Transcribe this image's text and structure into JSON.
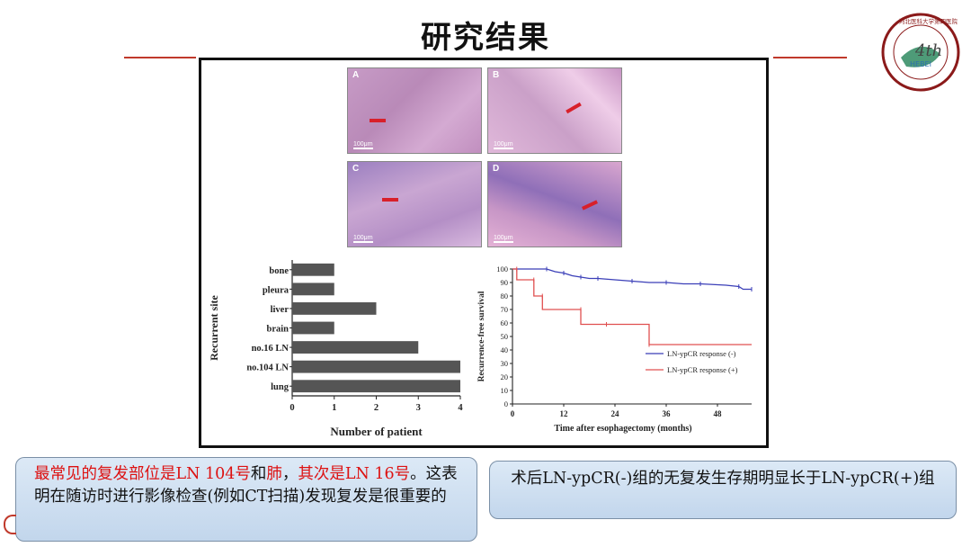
{
  "slide": {
    "title": "研究结果"
  },
  "logo": {
    "ring_text": "河北医科大学第四医院",
    "center_text": "4th",
    "sub_text": "HEBEI"
  },
  "micrographs": [
    {
      "label": "A",
      "scale": "100μm"
    },
    {
      "label": "B",
      "scale": "100μm"
    },
    {
      "label": "C",
      "scale": "100μm"
    },
    {
      "label": "D",
      "scale": "100μm"
    }
  ],
  "chart_data": [
    {
      "type": "bar",
      "orientation": "horizontal",
      "categories": [
        "bone",
        "pleura",
        "liver",
        "brain",
        "no.16 LN",
        "no.104 LN",
        "lung"
      ],
      "values": [
        1,
        1,
        2,
        1,
        3,
        4,
        4
      ],
      "xlabel": "Number of patient",
      "ylabel": "Recurrent site",
      "xlim": [
        0,
        4
      ],
      "xticks": [
        "0",
        "1",
        "2",
        "3",
        "4"
      ],
      "bar_color": "#555555"
    },
    {
      "type": "line",
      "step": true,
      "xlabel": "Time after esophagectomy (months)",
      "ylabel": "Recurrence-free survival",
      "xlim": [
        0,
        56
      ],
      "ylim": [
        0,
        100
      ],
      "xticks": [
        "0",
        "12",
        "24",
        "36",
        "48"
      ],
      "yticks": [
        "0",
        "10",
        "20",
        "30",
        "40",
        "50",
        "60",
        "70",
        "80",
        "90",
        "100"
      ],
      "series": [
        {
          "name": "LN-ypCR response (-)",
          "color": "#3b3fb8",
          "points": [
            [
              0,
              100
            ],
            [
              8,
              100
            ],
            [
              10,
              98
            ],
            [
              12,
              97
            ],
            [
              14,
              95
            ],
            [
              16,
              94
            ],
            [
              18,
              93
            ],
            [
              20,
              93
            ],
            [
              24,
              92
            ],
            [
              28,
              91
            ],
            [
              32,
              90
            ],
            [
              36,
              90
            ],
            [
              40,
              89
            ],
            [
              44,
              89
            ],
            [
              50,
              88
            ],
            [
              53,
              87
            ],
            [
              54,
              85
            ],
            [
              56,
              85
            ]
          ]
        },
        {
          "name": "LN-ypCR response (+)",
          "color": "#e05050",
          "points": [
            [
              0,
              100
            ],
            [
              1,
              100
            ],
            [
              1,
              92
            ],
            [
              5,
              92
            ],
            [
              5,
              80
            ],
            [
              7,
              80
            ],
            [
              7,
              70
            ],
            [
              16,
              70
            ],
            [
              16,
              59
            ],
            [
              22,
              59
            ],
            [
              32,
              59
            ],
            [
              32,
              44
            ],
            [
              56,
              44
            ]
          ]
        }
      ]
    }
  ],
  "callouts": {
    "left_parts": [
      {
        "text": "最常见的复发部位是",
        "red": true
      },
      {
        "text": "LN 104号",
        "red": true
      },
      {
        "text": "和",
        "red": false
      },
      {
        "text": "肺",
        "red": true
      },
      {
        "text": "，",
        "red": false
      },
      {
        "text": "其次是",
        "red": true
      },
      {
        "text": "LN 16号",
        "red": true
      },
      {
        "text": "。这表明在随访时进行影像检查(例如CT扫描)发现复发是很重要的",
        "red": false
      }
    ],
    "right": "术后LN-ypCR(-)组的无复发生存期明显长于LN-ypCR(+)组"
  }
}
